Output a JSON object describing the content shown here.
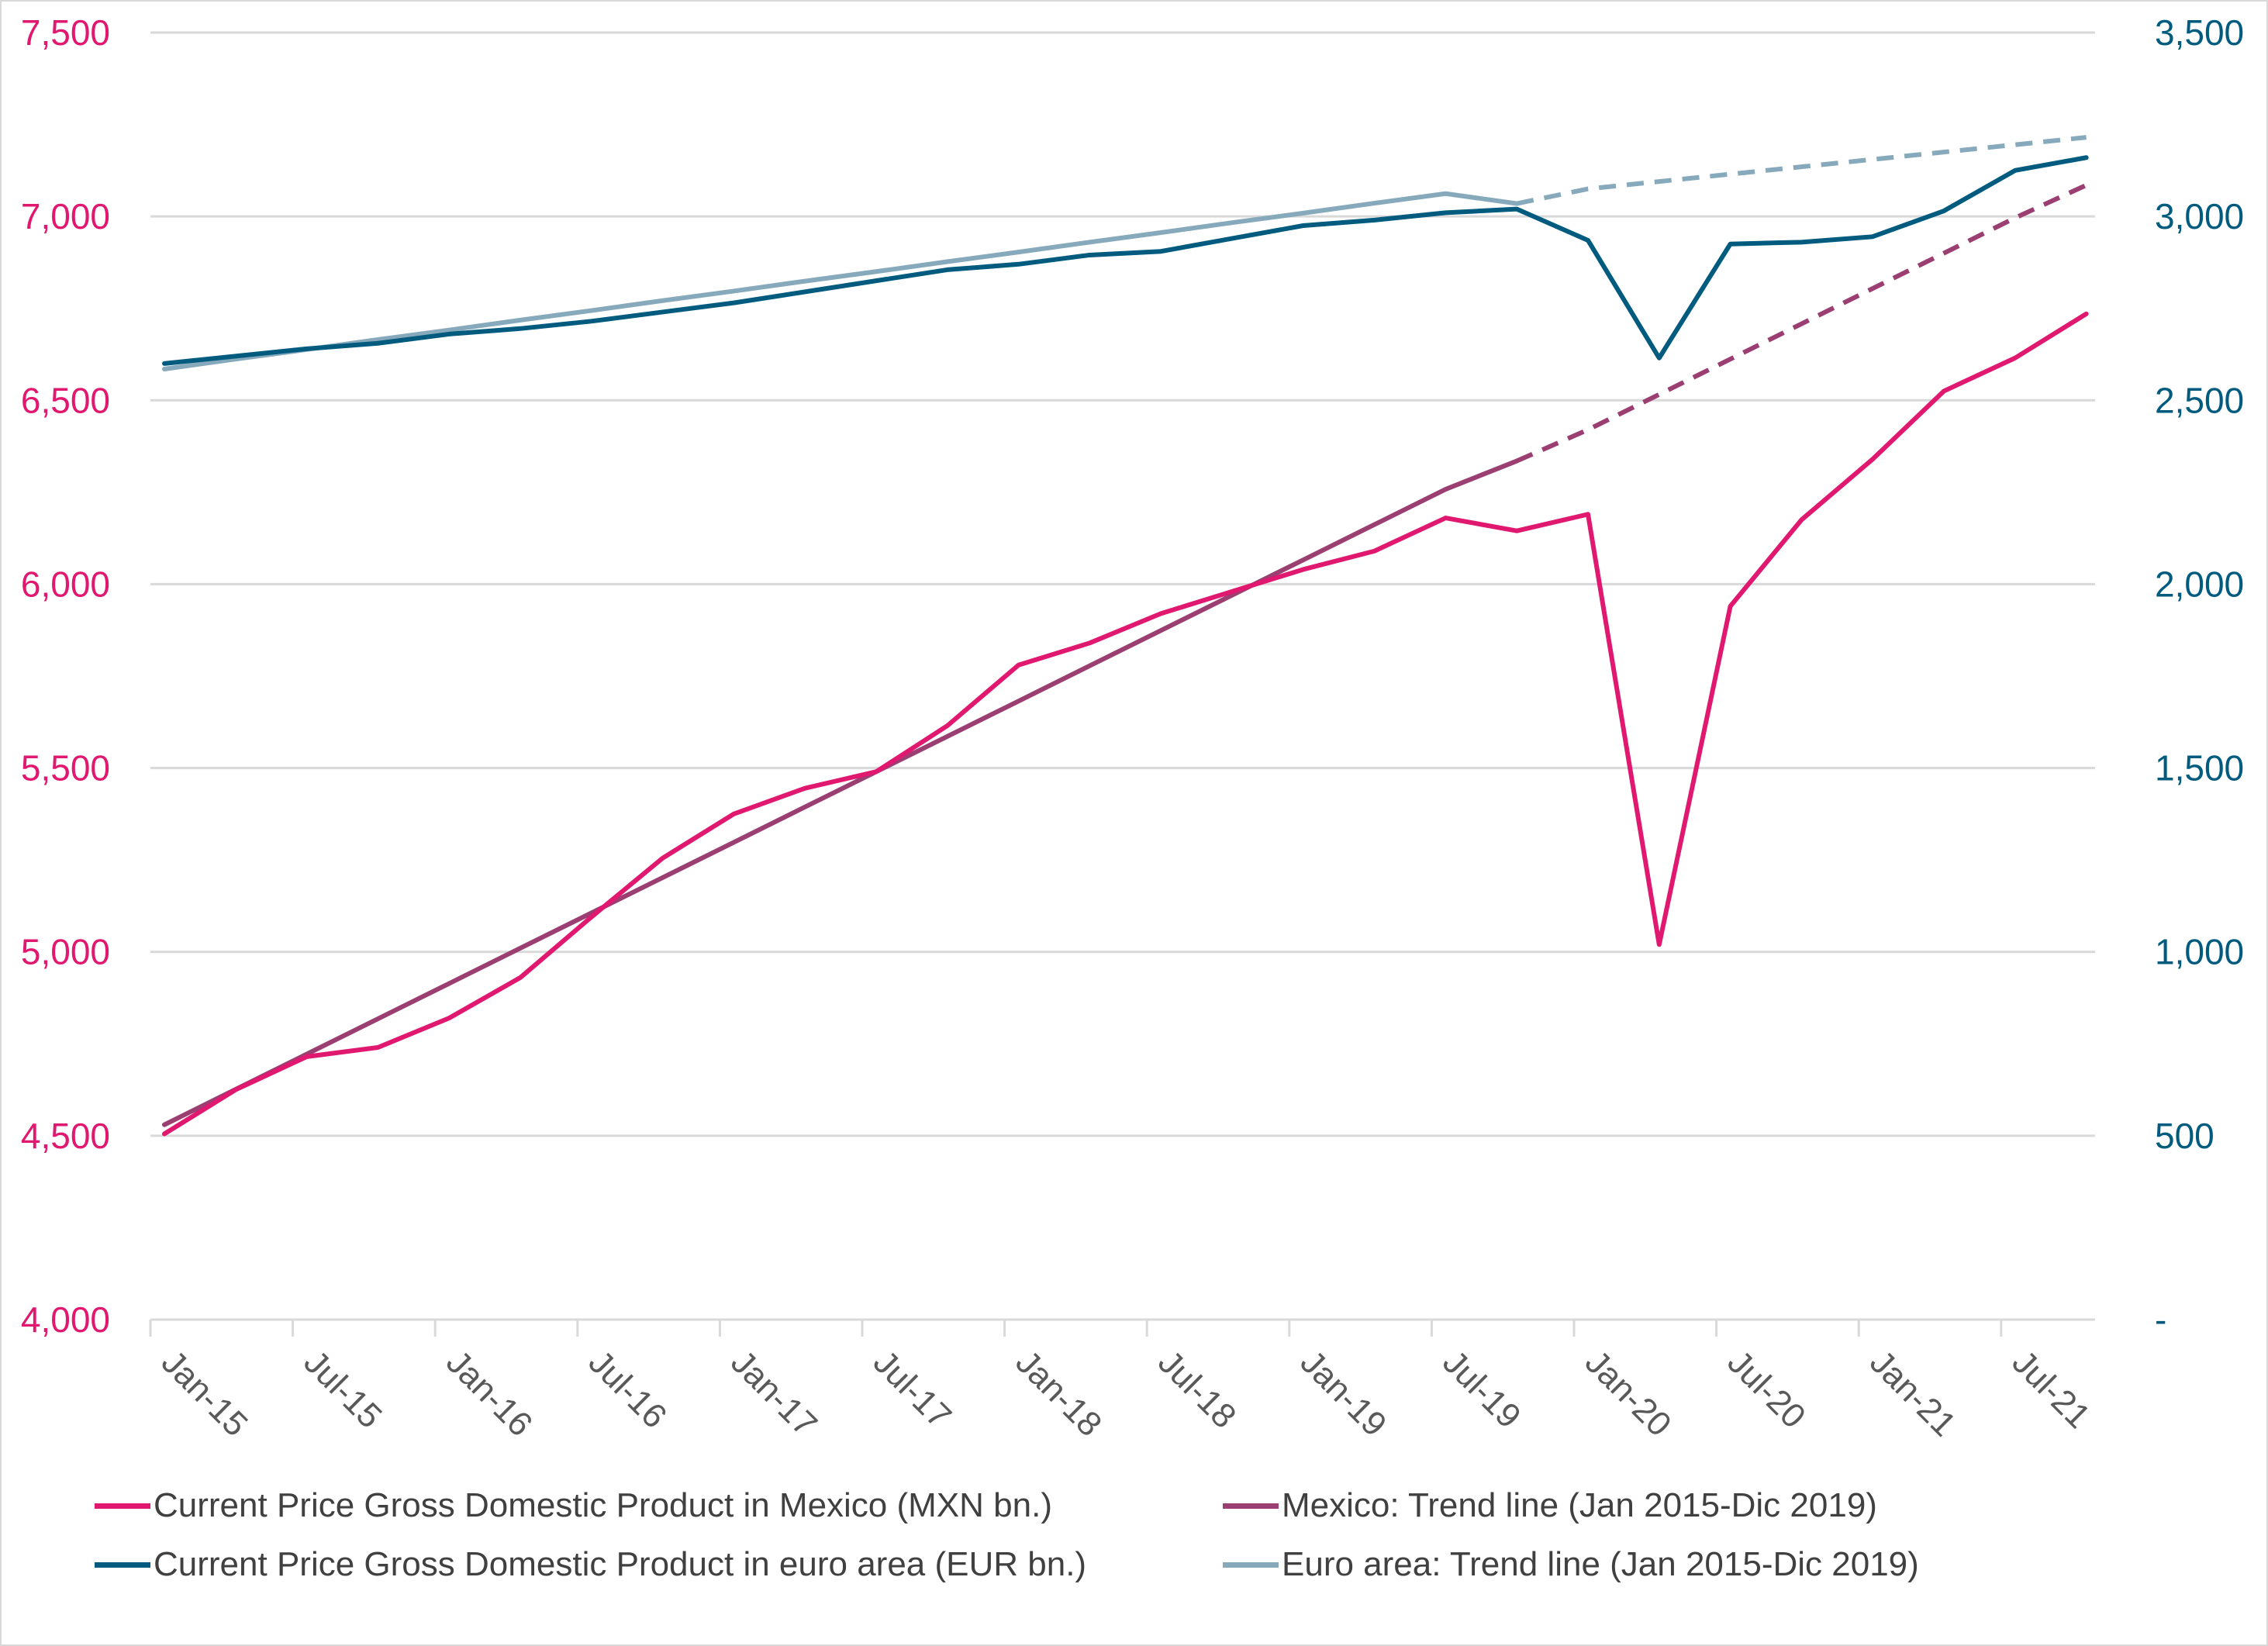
{
  "chart_data": {
    "type": "line",
    "x": [
      "Jan-15",
      "Apr-15",
      "Jul-15",
      "Oct-15",
      "Jan-16",
      "Apr-16",
      "Jul-16",
      "Oct-16",
      "Jan-17",
      "Apr-17",
      "Jul-17",
      "Oct-17",
      "Jan-18",
      "Apr-18",
      "Jul-18",
      "Oct-18",
      "Jan-19",
      "Apr-19",
      "Jul-19",
      "Oct-19",
      "Jan-20",
      "Apr-20",
      "Jul-20",
      "Oct-20",
      "Jan-21",
      "Apr-21",
      "Jul-21",
      "Oct-21"
    ],
    "x_tick_labels": [
      "Jan-15",
      "Jul-15",
      "Jan-16",
      "Jul-16",
      "Jan-17",
      "Jul-17",
      "Jan-18",
      "Jul-18",
      "Jan-19",
      "Jul-19",
      "Jan-20",
      "Jul-20",
      "Jan-21",
      "Jul-21"
    ],
    "left_axis": {
      "ylim": [
        4000,
        7500
      ],
      "ticks": [
        4000,
        4500,
        5000,
        5500,
        6000,
        6500,
        7000,
        7500
      ],
      "tick_labels": [
        "4,000",
        "4,500",
        "5,000",
        "5,500",
        "6,000",
        "6,500",
        "7,000",
        "7,500"
      ]
    },
    "right_axis": {
      "ylim": [
        0,
        3500
      ],
      "ticks": [
        0,
        500,
        1000,
        1500,
        2000,
        2500,
        3000,
        3500
      ],
      "tick_labels": [
        "-",
        "500",
        "1,000",
        "1,500",
        "2,000",
        "2,500",
        "3,000",
        "3,500"
      ]
    },
    "grid": true,
    "legend_position": "bottom",
    "series": [
      {
        "name": "Current Price Gross Domestic Product in Mexico (MXN bn.)",
        "axis": "left",
        "color": "#e0186f",
        "style": "solid",
        "values": [
          4505,
          4625,
          4715,
          4740,
          4820,
          4930,
          5095,
          5255,
          5375,
          5445,
          5490,
          5615,
          5780,
          5840,
          5920,
          5980,
          6040,
          6090,
          6180,
          6145,
          6190,
          5020,
          5940,
          6175,
          6340,
          6525,
          6615,
          6735
        ]
      },
      {
        "name": "Mexico: Trend line (Jan 2015-Dic 2019)",
        "axis": "left",
        "color": "#9b3e72",
        "style": "solid-then-dashed",
        "solid_until": "Oct-19",
        "values": [
          4530,
          4626,
          4722,
          4818,
          4914,
          5010,
          5106,
          5202,
          5298,
          5394,
          5490,
          5586,
          5682,
          5778,
          5874,
          5970,
          6066,
          6162,
          6258,
          6335,
          6420,
          6516,
          6612,
          6708,
          6804,
          6900,
          6996,
          7085
        ]
      },
      {
        "name": "Current Price Gross Domestic Product in euro area (EUR bn.)",
        "axis": "right",
        "color": "#005b7f",
        "style": "solid",
        "values": [
          2600,
          2620,
          2640,
          2655,
          2680,
          2695,
          2715,
          2740,
          2765,
          2795,
          2825,
          2855,
          2870,
          2895,
          2905,
          2940,
          2975,
          2990,
          3010,
          3020,
          2935,
          2615,
          2925,
          2930,
          2945,
          3015,
          3125,
          3160
        ]
      },
      {
        "name": "Euro area: Trend line (Jan 2015-Dic 2019)",
        "axis": "right",
        "color": "#86aabb",
        "style": "solid-then-dashed",
        "solid_until": "Oct-19",
        "values": [
          2585,
          2612,
          2638,
          2665,
          2691,
          2718,
          2744,
          2771,
          2797,
          2824,
          2850,
          2877,
          2903,
          2930,
          2956,
          2983,
          3009,
          3036,
          3062,
          3035,
          3075,
          3095,
          3115,
          3135,
          3155,
          3175,
          3195,
          3215
        ]
      }
    ]
  }
}
